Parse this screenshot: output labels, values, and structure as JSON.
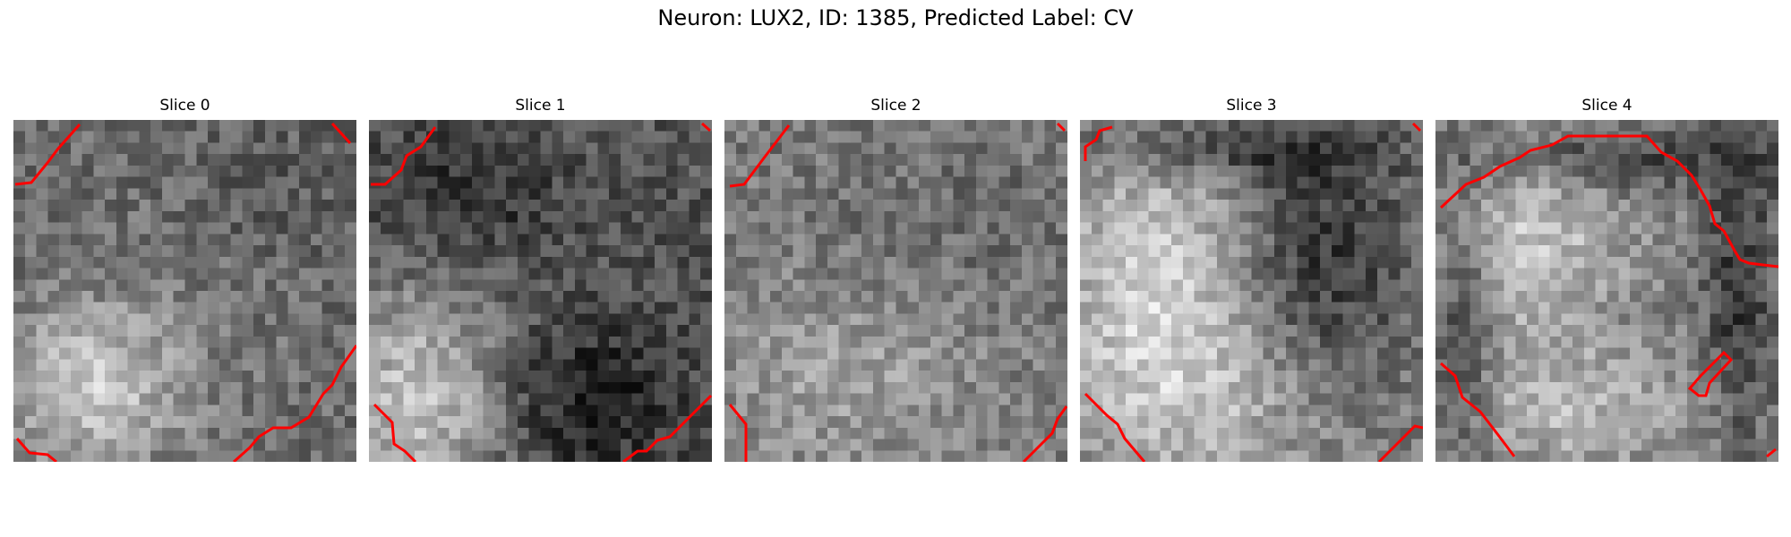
{
  "figure": {
    "suptitle": "Neuron: LUX2, ID: 1385, Predicted Label: CV"
  },
  "panels": [
    {
      "title": "Slice 0"
    },
    {
      "title": "Slice 1"
    },
    {
      "title": "Slice 2"
    },
    {
      "title": "Slice 3"
    },
    {
      "title": "Slice 4"
    }
  ],
  "colors": {
    "contour": "#ff0000",
    "background": "#ffffff"
  }
}
